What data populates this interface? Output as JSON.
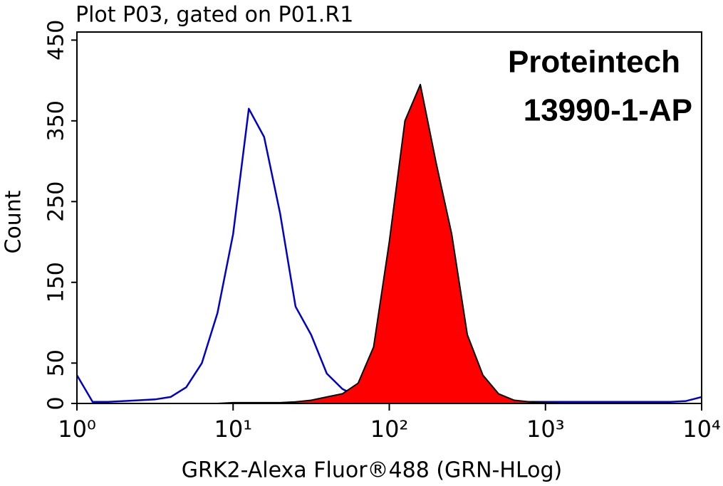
{
  "chart_data": {
    "type": "line",
    "title": "Plot P03, gated on P01.R1",
    "x_label": "GRK2-Alexa Fluor®488 (GRN-HLog)",
    "y_label": "Count",
    "annotations": [
      "Proteintech",
      "13990-1-AP"
    ],
    "xscale": "log",
    "xlim": [
      1,
      10000
    ],
    "xticks": [
      {
        "value": 1,
        "label": "10⁰"
      },
      {
        "value": 10,
        "label": "10¹"
      },
      {
        "value": 100,
        "label": "10²"
      },
      {
        "value": 1000,
        "label": "10³"
      },
      {
        "value": 10000,
        "label": "10⁴"
      }
    ],
    "ylim": [
      0,
      460
    ],
    "yticks": [
      0,
      50,
      150,
      250,
      350,
      450
    ],
    "x": [
      1,
      1.26,
      1.58,
      2,
      2.51,
      3.16,
      3.98,
      5.01,
      6.31,
      7.94,
      10,
      12.6,
      15.8,
      20,
      25.1,
      31.6,
      39.8,
      50.1,
      63.1,
      79.4,
      100,
      126,
      158,
      200,
      251,
      316,
      398,
      501,
      631,
      794,
      1000,
      1259,
      1585,
      1995,
      2512,
      3162,
      3981,
      5012,
      6310,
      7943,
      10000
    ],
    "series": [
      {
        "color": "#0000cc",
        "filled": false,
        "values": [
          35,
          2,
          2,
          3,
          4,
          5,
          8,
          20,
          50,
          112,
          210,
          365,
          330,
          235,
          120,
          85,
          37,
          18,
          8,
          4,
          3,
          2,
          2,
          2,
          2,
          2,
          2,
          2,
          2,
          2,
          2,
          2,
          2,
          2,
          2,
          2,
          2,
          2,
          2,
          3,
          8
        ]
      },
      {
        "color": "#ff0000",
        "filled": true,
        "values": [
          0,
          0,
          0,
          0,
          0,
          0,
          0,
          0,
          0,
          0,
          1,
          1,
          1,
          1,
          2,
          4,
          8,
          12,
          25,
          70,
          200,
          350,
          395,
          297,
          210,
          85,
          35,
          12,
          4,
          2,
          1,
          0,
          0,
          0,
          0,
          0,
          0,
          0,
          0,
          0,
          0
        ]
      }
    ]
  }
}
